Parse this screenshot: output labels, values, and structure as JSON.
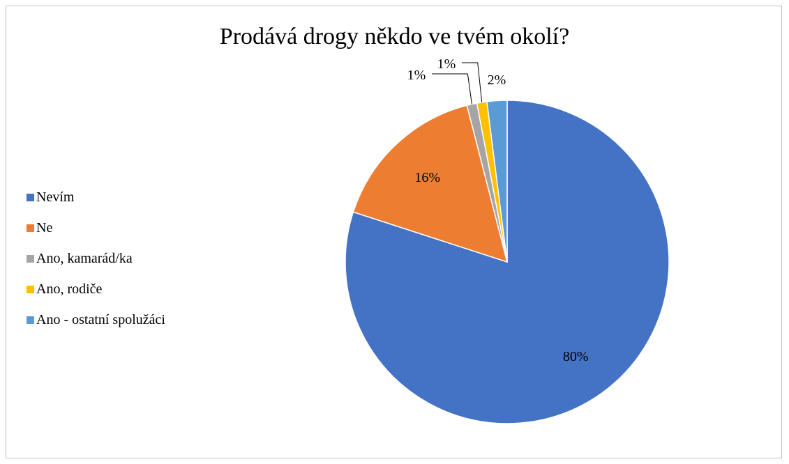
{
  "chart_data": {
    "type": "pie",
    "title": "Prodává drogy někdo ve tvém okolí?",
    "legend_position": "left",
    "slices": [
      {
        "label": "Nevím",
        "value": 80,
        "data_label": "80%",
        "color": "#4472c4"
      },
      {
        "label": "Ne",
        "value": 16,
        "data_label": "16%",
        "color": "#ed7d31"
      },
      {
        "label": "Ano, kamarád/ka",
        "value": 1,
        "data_label": "1%",
        "color": "#a5a5a5"
      },
      {
        "label": "Ano, rodiče",
        "value": 1,
        "data_label": "1%",
        "color": "#ffc000"
      },
      {
        "label": "Ano - ostatní spolužáci",
        "value": 2,
        "data_label": "2%",
        "color": "#5b9bd5"
      }
    ]
  }
}
